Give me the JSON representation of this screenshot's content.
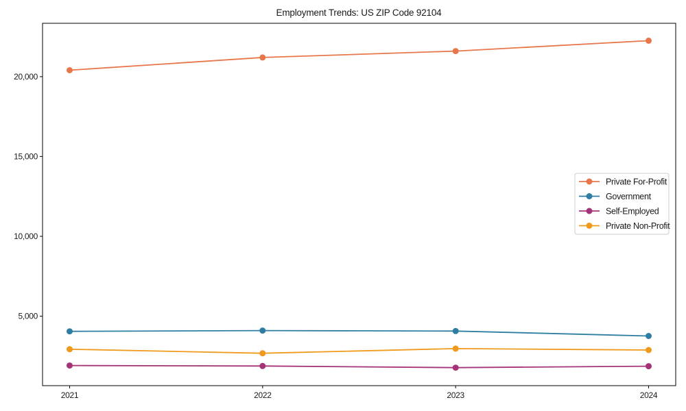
{
  "figure": {
    "title": "Employment Trends: US ZIP Code 92104"
  },
  "chart_data": {
    "type": "line",
    "title": "Employment Trends: US ZIP Code 92104",
    "xlabel": "",
    "ylabel": "",
    "x": [
      "2021",
      "2022",
      "2023",
      "2024"
    ],
    "series": [
      {
        "name": "Private For-Profit",
        "color": "#e8764b",
        "marker": "circle",
        "values": [
          20400,
          21200,
          21600,
          22250
        ]
      },
      {
        "name": "Government",
        "color": "#2e7ea3",
        "marker": "circle",
        "values": [
          4050,
          4100,
          4070,
          3760
        ]
      },
      {
        "name": "Self-Employed",
        "color": "#a43377",
        "marker": "circle",
        "values": [
          1910,
          1880,
          1780,
          1870
        ]
      },
      {
        "name": "Private Non-Profit",
        "color": "#f09a1c",
        "marker": "circle",
        "values": [
          2930,
          2680,
          2970,
          2880
        ]
      }
    ],
    "ylim": [
      650,
      23340
    ],
    "yticks": [
      5000,
      10000,
      15000,
      20000
    ],
    "ytick_labels": [
      "5,000",
      "10,000",
      "15,000",
      "20,000"
    ],
    "xtick_labels": [
      "2021",
      "2022",
      "2023",
      "2024"
    ],
    "grid": false,
    "legend": {
      "position": "center-right",
      "border_color": "#cccccc",
      "background": "#ffffff",
      "items": [
        "Private For-Profit",
        "Government",
        "Self-Employed",
        "Private Non-Profit"
      ]
    },
    "colors": {
      "text": "#1a1a1a",
      "spine": "#000000",
      "background": "#ffffff"
    }
  }
}
